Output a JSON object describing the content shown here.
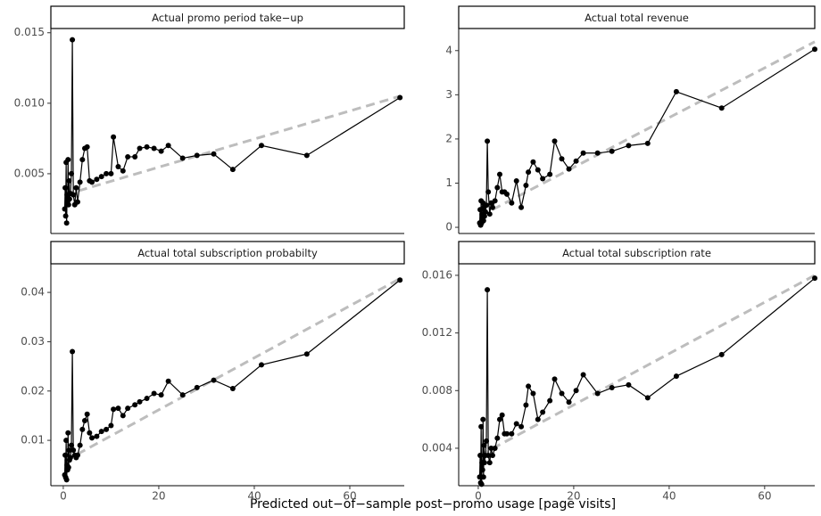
{
  "x_title": "Predicted out−of−sample post−promo usage [page visits]",
  "chart_data": [
    {
      "type": "line",
      "title": "Actual promo period take−up",
      "x": [
        0.3,
        0.4,
        0.5,
        0.6,
        0.7,
        0.8,
        0.9,
        1.0,
        1.1,
        1.2,
        1.3,
        1.5,
        1.7,
        1.9,
        2.1,
        2.4,
        2.7,
        3.0,
        3.5,
        4.0,
        4.5,
        5.0,
        5.5,
        6.0,
        7.0,
        8.0,
        9.0,
        10.0,
        10.5,
        11.5,
        12.5,
        13.5,
        15.0,
        16.0,
        17.5,
        19.0,
        20.5,
        22.0,
        25.0,
        28.0,
        31.5,
        35.5,
        41.5,
        51.0,
        70.5
      ],
      "values": [
        0.0025,
        0.004,
        0.002,
        0.0058,
        0.0015,
        0.0035,
        0.003,
        0.006,
        0.0028,
        0.0045,
        0.0032,
        0.0036,
        0.005,
        0.0145,
        0.0035,
        0.0028,
        0.004,
        0.003,
        0.0044,
        0.006,
        0.0068,
        0.0069,
        0.0045,
        0.0044,
        0.0046,
        0.0048,
        0.005,
        0.005,
        0.0076,
        0.0055,
        0.0052,
        0.0062,
        0.0062,
        0.0068,
        0.0069,
        0.0068,
        0.0066,
        0.007,
        0.0061,
        0.0063,
        0.0064,
        0.0053,
        0.007,
        0.0063,
        0.0104
      ],
      "color": "#000000",
      "trend": {
        "x": [
          0.3,
          70.5
        ],
        "values": [
          0.0035,
          0.0105
        ],
        "color": "#bdbdbd"
      },
      "xlim": [
        -2.6,
        71.4
      ],
      "ylim": [
        0.00076,
        0.0153
      ],
      "yticks": [
        0.005,
        {
          "value": 0.01,
          "label": "0.010"
        },
        0.015
      ]
    },
    {
      "type": "line",
      "title": "Actual total revenue",
      "x": [
        0.3,
        0.4,
        0.5,
        0.6,
        0.7,
        0.8,
        0.9,
        1.0,
        1.1,
        1.2,
        1.3,
        1.5,
        1.7,
        1.9,
        2.1,
        2.4,
        2.7,
        3.0,
        3.5,
        4.0,
        4.5,
        5.0,
        5.5,
        6.0,
        7.0,
        8.0,
        9.0,
        10.0,
        10.5,
        11.5,
        12.5,
        13.5,
        15.0,
        16.0,
        17.5,
        19.0,
        20.5,
        22.0,
        25.0,
        28.0,
        31.5,
        35.5,
        41.5,
        51.0,
        70.5
      ],
      "values": [
        0.1,
        0.4,
        0.05,
        0.6,
        0.1,
        0.3,
        0.2,
        0.55,
        0.15,
        0.45,
        0.25,
        0.35,
        0.5,
        1.95,
        0.8,
        0.3,
        0.55,
        0.45,
        0.6,
        0.9,
        1.2,
        0.8,
        0.8,
        0.75,
        0.55,
        1.05,
        0.45,
        0.95,
        1.25,
        1.48,
        1.3,
        1.1,
        1.2,
        1.95,
        1.55,
        1.32,
        1.5,
        1.68,
        1.68,
        1.72,
        1.85,
        1.9,
        3.07,
        2.7,
        4.03
      ],
      "color": "#000000",
      "trend": {
        "x": [
          0.3,
          70.5
        ],
        "values": [
          0.25,
          4.2
        ],
        "color": "#bdbdbd"
      },
      "xlim": [
        -4.1,
        70.5
      ],
      "ylim": [
        -0.14,
        4.5
      ],
      "yticks": [
        0,
        1,
        2,
        3,
        4
      ]
    },
    {
      "type": "line",
      "title": "Actual total subscription probabilty",
      "x": [
        0.3,
        0.4,
        0.5,
        0.6,
        0.7,
        0.8,
        0.9,
        1.0,
        1.1,
        1.2,
        1.3,
        1.5,
        1.7,
        1.9,
        2.1,
        2.4,
        2.7,
        3.0,
        3.5,
        4.0,
        4.5,
        5.0,
        5.5,
        6.0,
        7.0,
        8.0,
        9.0,
        10.0,
        10.5,
        11.5,
        12.5,
        13.5,
        15.0,
        16.0,
        17.5,
        19.0,
        20.5,
        22.0,
        25.0,
        28.0,
        31.5,
        35.5,
        41.5,
        51.0,
        70.5
      ],
      "values": [
        0.003,
        0.007,
        0.0025,
        0.01,
        0.002,
        0.005,
        0.004,
        0.0115,
        0.0045,
        0.008,
        0.006,
        0.0065,
        0.009,
        0.028,
        0.008,
        0.007,
        0.0065,
        0.007,
        0.009,
        0.0122,
        0.014,
        0.0153,
        0.0115,
        0.0105,
        0.0108,
        0.0118,
        0.0122,
        0.013,
        0.0163,
        0.0165,
        0.015,
        0.0165,
        0.0172,
        0.0178,
        0.0185,
        0.0195,
        0.0192,
        0.022,
        0.0192,
        0.0207,
        0.0222,
        0.0205,
        0.0253,
        0.0275,
        0.0425
      ],
      "color": "#000000",
      "trend": {
        "x": [
          0.3,
          70.5
        ],
        "values": [
          0.0058,
          0.0428
        ],
        "color": "#bdbdbd"
      },
      "xlim": [
        -2.6,
        71.4
      ],
      "ylim": [
        0.0008,
        0.0458
      ],
      "yticks": [
        0.01,
        0.02,
        0.03,
        0.04
      ],
      "xticks": [
        0,
        20,
        40,
        60
      ]
    },
    {
      "type": "line",
      "title": "Actual total subscription rate",
      "x": [
        0.3,
        0.4,
        0.5,
        0.6,
        0.7,
        0.8,
        0.9,
        1.0,
        1.1,
        1.2,
        1.3,
        1.5,
        1.7,
        1.9,
        2.1,
        2.4,
        2.7,
        3.0,
        3.5,
        4.0,
        4.5,
        5.0,
        5.5,
        6.0,
        7.0,
        8.0,
        9.0,
        10.0,
        10.5,
        11.5,
        12.5,
        13.5,
        15.0,
        16.0,
        17.5,
        19.0,
        20.5,
        22.0,
        25.0,
        28.0,
        31.5,
        35.5,
        41.5,
        51.0,
        70.5
      ],
      "values": [
        0.002,
        0.0035,
        0.0016,
        0.0055,
        0.0015,
        0.003,
        0.0025,
        0.006,
        0.002,
        0.0042,
        0.003,
        0.0035,
        0.0045,
        0.015,
        0.0035,
        0.003,
        0.004,
        0.0035,
        0.004,
        0.0047,
        0.006,
        0.0063,
        0.005,
        0.005,
        0.005,
        0.0057,
        0.0055,
        0.007,
        0.0083,
        0.0078,
        0.006,
        0.0065,
        0.0073,
        0.0088,
        0.0078,
        0.0072,
        0.008,
        0.0091,
        0.0078,
        0.0082,
        0.0084,
        0.0075,
        0.009,
        0.0105,
        0.0158
      ],
      "color": "#000000",
      "trend": {
        "x": [
          0.3,
          70.5
        ],
        "values": [
          0.0035,
          0.016
        ],
        "color": "#bdbdbd"
      },
      "xlim": [
        -4.1,
        70.5
      ],
      "ylim": [
        0.0014,
        0.0168
      ],
      "yticks": [
        0.004,
        0.008,
        0.012,
        0.016
      ],
      "xticks": [
        0,
        20,
        40,
        60
      ]
    }
  ]
}
